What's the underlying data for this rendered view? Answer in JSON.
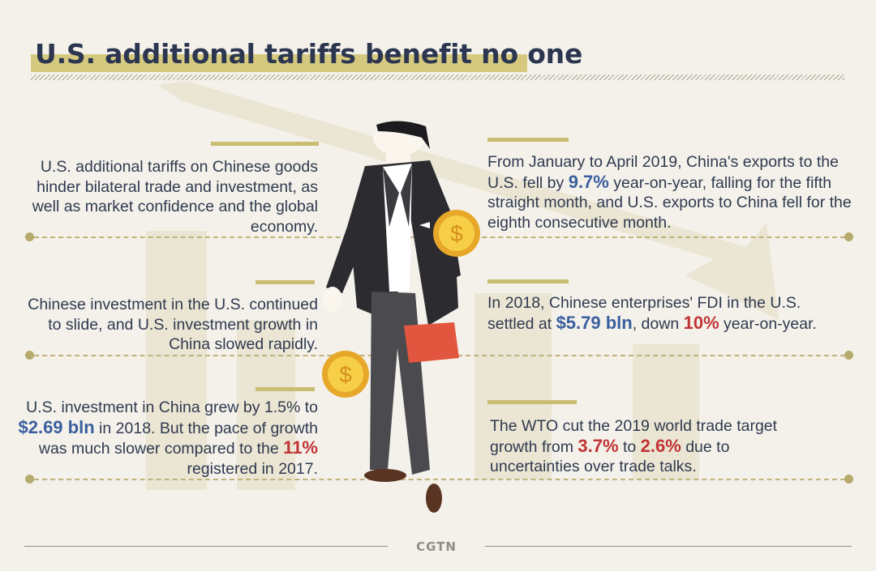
{
  "title": "U.S. additional tariffs benefit no one",
  "blocks": {
    "left_1": "U.S. additional tariffs on Chinese goods hinder bilateral trade and investment, as well as market confidence and the global economy.",
    "left_2": "Chinese investment in the U.S. continued to slide, and U.S. investment growth in China slowed rapidly.",
    "left_3": {
      "part1": "U.S. investment in China grew by 1.5% to ",
      "hl1": "$2.69 bln",
      "part2": " in 2018. But the pace of growth was much slower compared to the ",
      "hl2": "11%",
      "part3": " registered in 2017."
    },
    "right_1": {
      "part1": "From January to April 2019, China's exports to the U.S. fell by ",
      "hl1": "9.7%",
      "part2": " year-on-year, falling for the fifth straight month, and U.S. exports to China fell for the eighth consecutive month."
    },
    "right_2": {
      "part1": "In 2018, Chinese enterprises' FDI in the U.S. settled at ",
      "hl1": "$5.79 bln",
      "part2": ", down ",
      "hl2": "10%",
      "part3": " year-on-year."
    },
    "right_3": {
      "part1": "The WTO cut the 2019 world trade target growth from ",
      "hl1": "3.7%",
      "part2": " to ",
      "hl2": "2.6%",
      "part3": " due to uncertainties over trade talks."
    }
  },
  "footer": {
    "logo": "CGTN"
  },
  "colors": {
    "background": "#f4f1ea",
    "title": "#2c3650",
    "accent_gold": "#c9bd74",
    "highlight_blue": "#3a5f9e",
    "highlight_red": "#c03434",
    "body_text": "#2f3a4f"
  },
  "icons": [
    "coin-dollar-icon",
    "coin-dollar-icon"
  ]
}
